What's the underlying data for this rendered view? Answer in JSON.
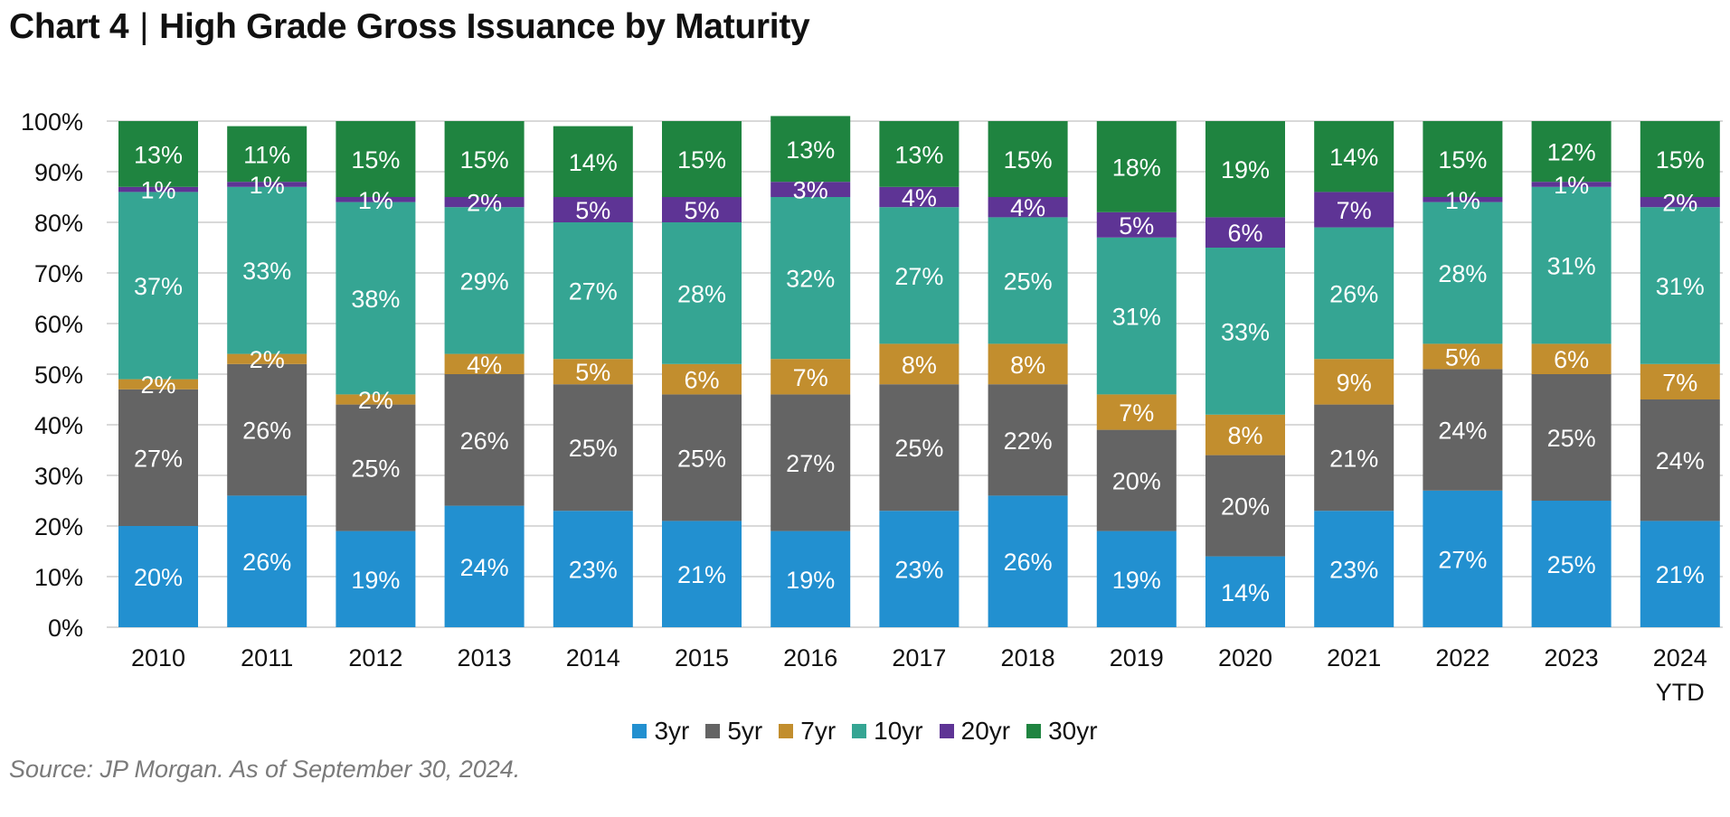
{
  "title": {
    "chart_no": "Chart 4",
    "separator": "|",
    "text": "High Grade Gross Issuance by Maturity"
  },
  "source": "Source: JP Morgan. As of September 30, 2024.",
  "chart_data": {
    "type": "bar",
    "stacked": true,
    "normalized": true,
    "title": "High Grade Gross Issuance by Maturity",
    "xlabel": "",
    "ylabel": "",
    "ylim": [
      0,
      100
    ],
    "yticks": [
      "0%",
      "10%",
      "20%",
      "30%",
      "40%",
      "50%",
      "60%",
      "70%",
      "80%",
      "90%",
      "100%"
    ],
    "grid": true,
    "legend": "bottom-center",
    "categories": [
      "2010",
      "2011",
      "2012",
      "2013",
      "2014",
      "2015",
      "2016",
      "2017",
      "2018",
      "2019",
      "2020",
      "2021",
      "2022",
      "2023",
      "2024\nYTD"
    ],
    "series": [
      {
        "name": "3yr",
        "color": "#2290D0",
        "values": [
          20,
          26,
          19,
          24,
          23,
          21,
          19,
          23,
          26,
          19,
          14,
          23,
          27,
          25,
          21
        ]
      },
      {
        "name": "5yr",
        "color": "#646464",
        "values": [
          27,
          26,
          25,
          26,
          25,
          25,
          27,
          25,
          22,
          20,
          20,
          21,
          24,
          25,
          24
        ]
      },
      {
        "name": "7yr",
        "color": "#C28E2E",
        "values": [
          2,
          2,
          2,
          4,
          5,
          6,
          7,
          8,
          8,
          7,
          8,
          9,
          5,
          6,
          7
        ]
      },
      {
        "name": "10yr",
        "color": "#35A593",
        "values": [
          37,
          33,
          38,
          29,
          27,
          28,
          32,
          27,
          25,
          31,
          33,
          26,
          28,
          31,
          31
        ]
      },
      {
        "name": "20yr",
        "color": "#5E3495",
        "values": [
          1,
          1,
          1,
          2,
          5,
          5,
          3,
          4,
          4,
          5,
          6,
          7,
          1,
          1,
          2
        ]
      },
      {
        "name": "30yr",
        "color": "#1F8440",
        "values": [
          13,
          11,
          15,
          15,
          14,
          15,
          13,
          13,
          15,
          18,
          19,
          14,
          15,
          12,
          15
        ]
      }
    ]
  }
}
